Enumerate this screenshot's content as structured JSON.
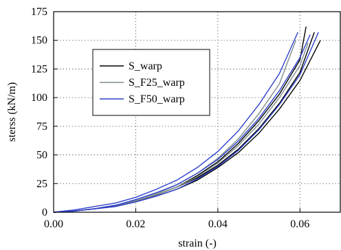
{
  "chart_data": {
    "type": "line",
    "xlabel": "strain (-)",
    "ylabel": "sterss (kN/m)",
    "xlim": [
      0,
      0.07
    ],
    "ylim": [
      0,
      175
    ],
    "xticks": [
      0.0,
      0.02,
      0.04,
      0.06
    ],
    "xtick_labels": [
      "0.00",
      "0.02",
      "0.04",
      "0.06"
    ],
    "yticks": [
      0,
      25,
      50,
      75,
      100,
      125,
      150,
      175
    ],
    "ytick_labels": [
      "0",
      "25",
      "50",
      "75",
      "100",
      "125",
      "150",
      "175"
    ],
    "grid": true,
    "legend_position": "upper-left",
    "series": [
      {
        "name": "S_warp",
        "color": "#000000",
        "curves": [
          {
            "x": [
              0,
              0.005,
              0.01,
              0.015,
              0.02,
              0.025,
              0.03,
              0.035,
              0.04,
              0.045,
              0.05,
              0.055,
              0.06,
              0.0615
            ],
            "y": [
              0,
              1,
              3,
              6,
              10,
              15,
              22,
              32,
              44,
              60,
              80,
              103,
              133,
              162
            ]
          },
          {
            "x": [
              0,
              0.005,
              0.01,
              0.015,
              0.02,
              0.025,
              0.03,
              0.035,
              0.04,
              0.045,
              0.05,
              0.055,
              0.06,
              0.0635
            ],
            "y": [
              0,
              1,
              3,
              6,
              10,
              15,
              22,
              30,
              41,
              55,
              73,
              95,
              122,
              157
            ]
          },
          {
            "x": [
              0,
              0.005,
              0.01,
              0.015,
              0.02,
              0.025,
              0.03,
              0.035,
              0.04,
              0.045,
              0.05,
              0.055,
              0.06,
              0.065
            ],
            "y": [
              0,
              1,
              3,
              5,
              9,
              14,
              20,
              28,
              39,
              52,
              69,
              90,
              115,
              150
            ]
          }
        ]
      },
      {
        "name": "S_F25_warp",
        "color": "#7f8c8c",
        "curves": [
          {
            "x": [
              0,
              0.005,
              0.01,
              0.015,
              0.02,
              0.025,
              0.03,
              0.035,
              0.04,
              0.045,
              0.05,
              0.055,
              0.059
            ],
            "y": [
              0,
              1,
              3,
              6,
              10,
              16,
              24,
              34,
              47,
              64,
              86,
              112,
              150
            ]
          },
          {
            "x": [
              0,
              0.005,
              0.01,
              0.015,
              0.02,
              0.025,
              0.03,
              0.035,
              0.04,
              0.045,
              0.05,
              0.055,
              0.06,
              0.062
            ],
            "y": [
              0,
              1,
              3,
              6,
              10,
              15,
              22,
              31,
              43,
              58,
              77,
              100,
              128,
              148
            ]
          }
        ]
      },
      {
        "name": "S_F50_warp",
        "color": "#2b3fcc",
        "curves": [
          {
            "x": [
              0,
              0.005,
              0.01,
              0.015,
              0.02,
              0.025,
              0.03,
              0.035,
              0.04,
              0.045,
              0.05,
              0.055,
              0.0595
            ],
            "y": [
              0,
              2,
              5,
              8,
              13,
              20,
              28,
              39,
              53,
              71,
              94,
              121,
              157
            ]
          },
          {
            "x": [
              0,
              0.005,
              0.01,
              0.015,
              0.02,
              0.025,
              0.03,
              0.035,
              0.04,
              0.045,
              0.05,
              0.055,
              0.06,
              0.0625
            ],
            "y": [
              0,
              1,
              3,
              6,
              11,
              17,
              24,
              34,
              46,
              62,
              82,
              106,
              135,
              155
            ]
          },
          {
            "x": [
              0,
              0.005,
              0.01,
              0.015,
              0.02,
              0.025,
              0.03,
              0.035,
              0.04,
              0.045,
              0.05,
              0.055,
              0.06,
              0.0645
            ],
            "y": [
              0,
              1,
              3,
              5,
              9,
              14,
              20,
              29,
              40,
              54,
              72,
              94,
              120,
              157
            ]
          }
        ]
      }
    ]
  }
}
